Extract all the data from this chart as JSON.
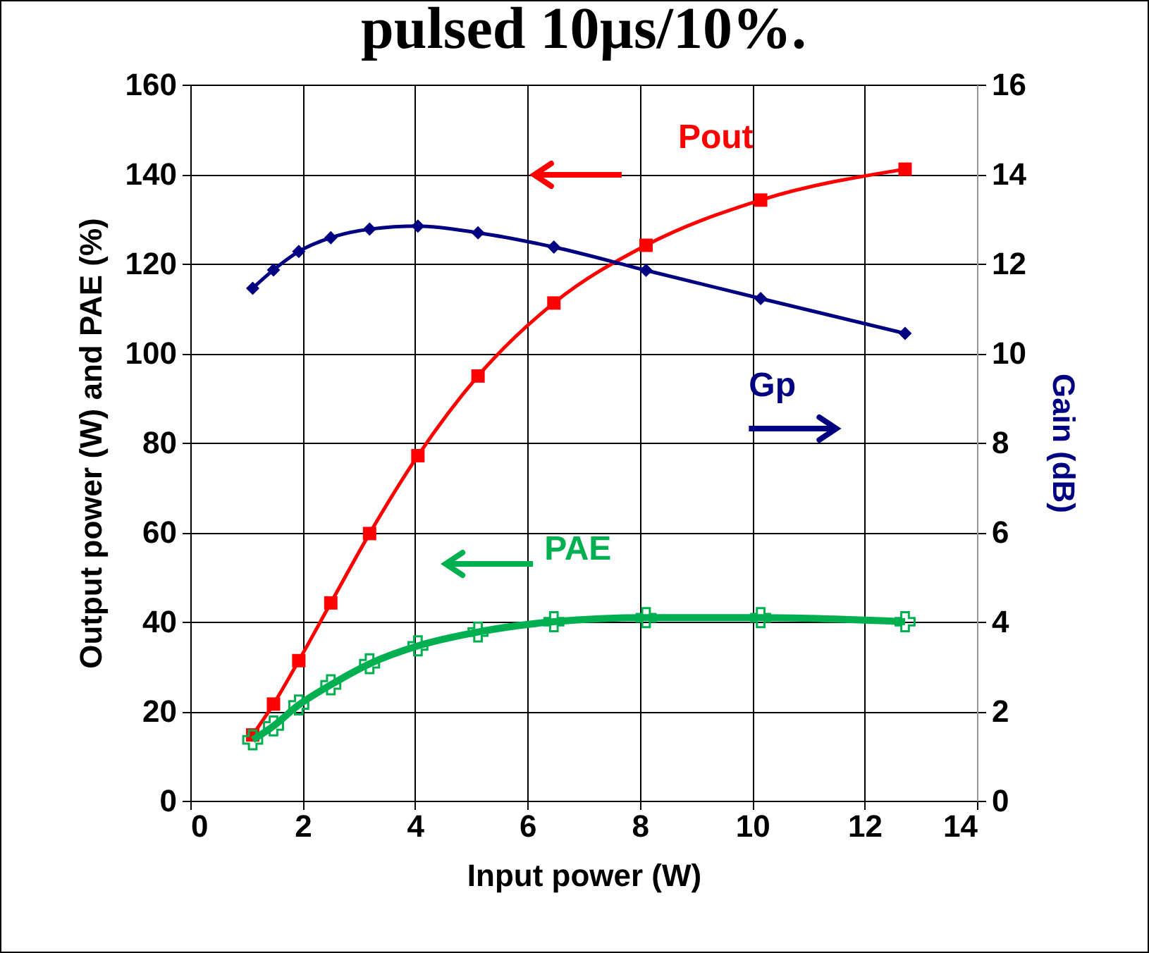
{
  "chart_data": {
    "type": "line",
    "title": "pulsed 10µs/10%.",
    "xlabel": "Input power (W)",
    "ylabel": "Output power (W) and PAE (%)",
    "y2label": "Gain (dB)",
    "x": [
      1.11,
      1.48,
      1.93,
      2.5,
      3.19,
      4.05,
      5.12,
      6.47,
      8.11,
      10.15,
      12.72
    ],
    "series": [
      {
        "name": "Pout",
        "color": "#ff0000",
        "marker": "square",
        "values": [
          14.7,
          21.6,
          31.3,
          44.2,
          59.7,
          77.1,
          94.9,
          111.2,
          124.1,
          134.2,
          141.1
        ]
      },
      {
        "name": "Gp",
        "color": "#000080",
        "marker": "diamond",
        "axis": "y2",
        "values": [
          11.45,
          11.86,
          12.27,
          12.58,
          12.77,
          12.84,
          12.69,
          12.37,
          11.85,
          11.22,
          10.44
        ]
      },
      {
        "name": "PAE",
        "color": "#00b050",
        "marker": "cross",
        "values": [
          13.6,
          16.7,
          21.4,
          25.9,
          30.6,
          34.6,
          37.7,
          40.0,
          40.9,
          40.9,
          40.0
        ]
      }
    ],
    "xlim": [
      0,
      14
    ],
    "xticks": [
      0,
      2,
      4,
      6,
      8,
      10,
      12,
      14
    ],
    "ylim": [
      0,
      160
    ],
    "yticks": [
      0,
      20,
      40,
      60,
      80,
      100,
      120,
      140,
      160
    ],
    "y2lim": [
      0,
      16
    ],
    "y2ticks": [
      0,
      2,
      4,
      6,
      8,
      10,
      12,
      14,
      16
    ],
    "grid": true
  }
}
